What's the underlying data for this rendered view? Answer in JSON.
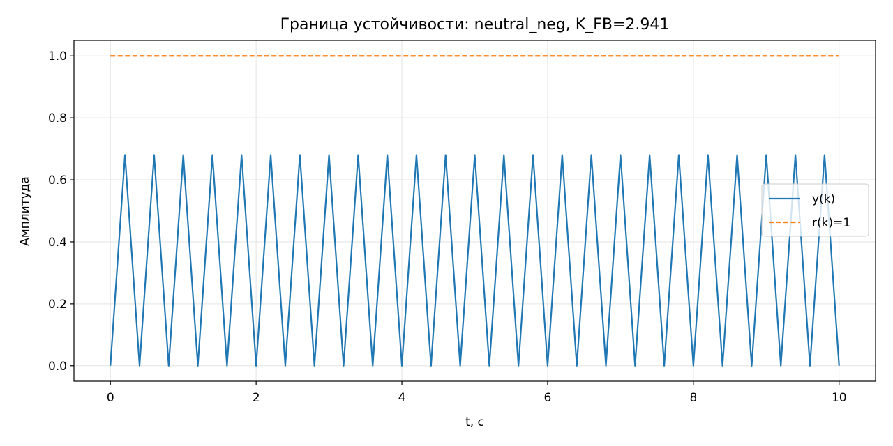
{
  "chart_data": {
    "type": "line",
    "title": "Граница устойчивости: neutral_neg, K_FB=2.941",
    "xlabel": "t, c",
    "ylabel": "Амплитуда",
    "xlim": [
      -0.5,
      10.5
    ],
    "ylim": [
      -0.05,
      1.05
    ],
    "xticks": [
      0,
      2,
      4,
      6,
      8,
      10
    ],
    "xtick_labels": [
      "0",
      "2",
      "4",
      "6",
      "8",
      "10"
    ],
    "yticks": [
      0.0,
      0.2,
      0.4,
      0.6,
      0.8,
      1.0
    ],
    "ytick_labels": [
      "0.0",
      "0.2",
      "0.4",
      "0.6",
      "0.8",
      "1.0"
    ],
    "grid": true,
    "legend_position": "center-right",
    "series": [
      {
        "name": "y(k)",
        "color": "#1f77b4",
        "style": "solid",
        "x": [
          0,
          0.2,
          0.4,
          0.6,
          0.8,
          1.0,
          1.2,
          1.4,
          1.6,
          1.8,
          2.0,
          2.2,
          2.4,
          2.6,
          2.8,
          3.0,
          3.2,
          3.4,
          3.6,
          3.8,
          4.0,
          4.2,
          4.4,
          4.6,
          4.8,
          5.0,
          5.2,
          5.4,
          5.6,
          5.8,
          6.0,
          6.2,
          6.4,
          6.6,
          6.8,
          7.0,
          7.2,
          7.4,
          7.6,
          7.8,
          8.0,
          8.2,
          8.4,
          8.6,
          8.8,
          9.0,
          9.2,
          9.4,
          9.6,
          9.8,
          10.0
        ],
        "y": [
          0,
          0.68,
          0,
          0.68,
          0,
          0.68,
          0,
          0.68,
          0,
          0.68,
          0,
          0.68,
          0,
          0.68,
          0,
          0.68,
          0,
          0.68,
          0,
          0.68,
          0,
          0.68,
          0,
          0.68,
          0,
          0.68,
          0,
          0.68,
          0,
          0.68,
          0,
          0.68,
          0,
          0.68,
          0,
          0.68,
          0,
          0.68,
          0,
          0.68,
          0,
          0.68,
          0,
          0.68,
          0,
          0.68,
          0,
          0.68,
          0,
          0.68,
          0
        ]
      },
      {
        "name": "r(k)=1",
        "color": "#ff7f0e",
        "style": "dashed",
        "x": [
          0,
          10
        ],
        "y": [
          1,
          1
        ]
      }
    ]
  }
}
